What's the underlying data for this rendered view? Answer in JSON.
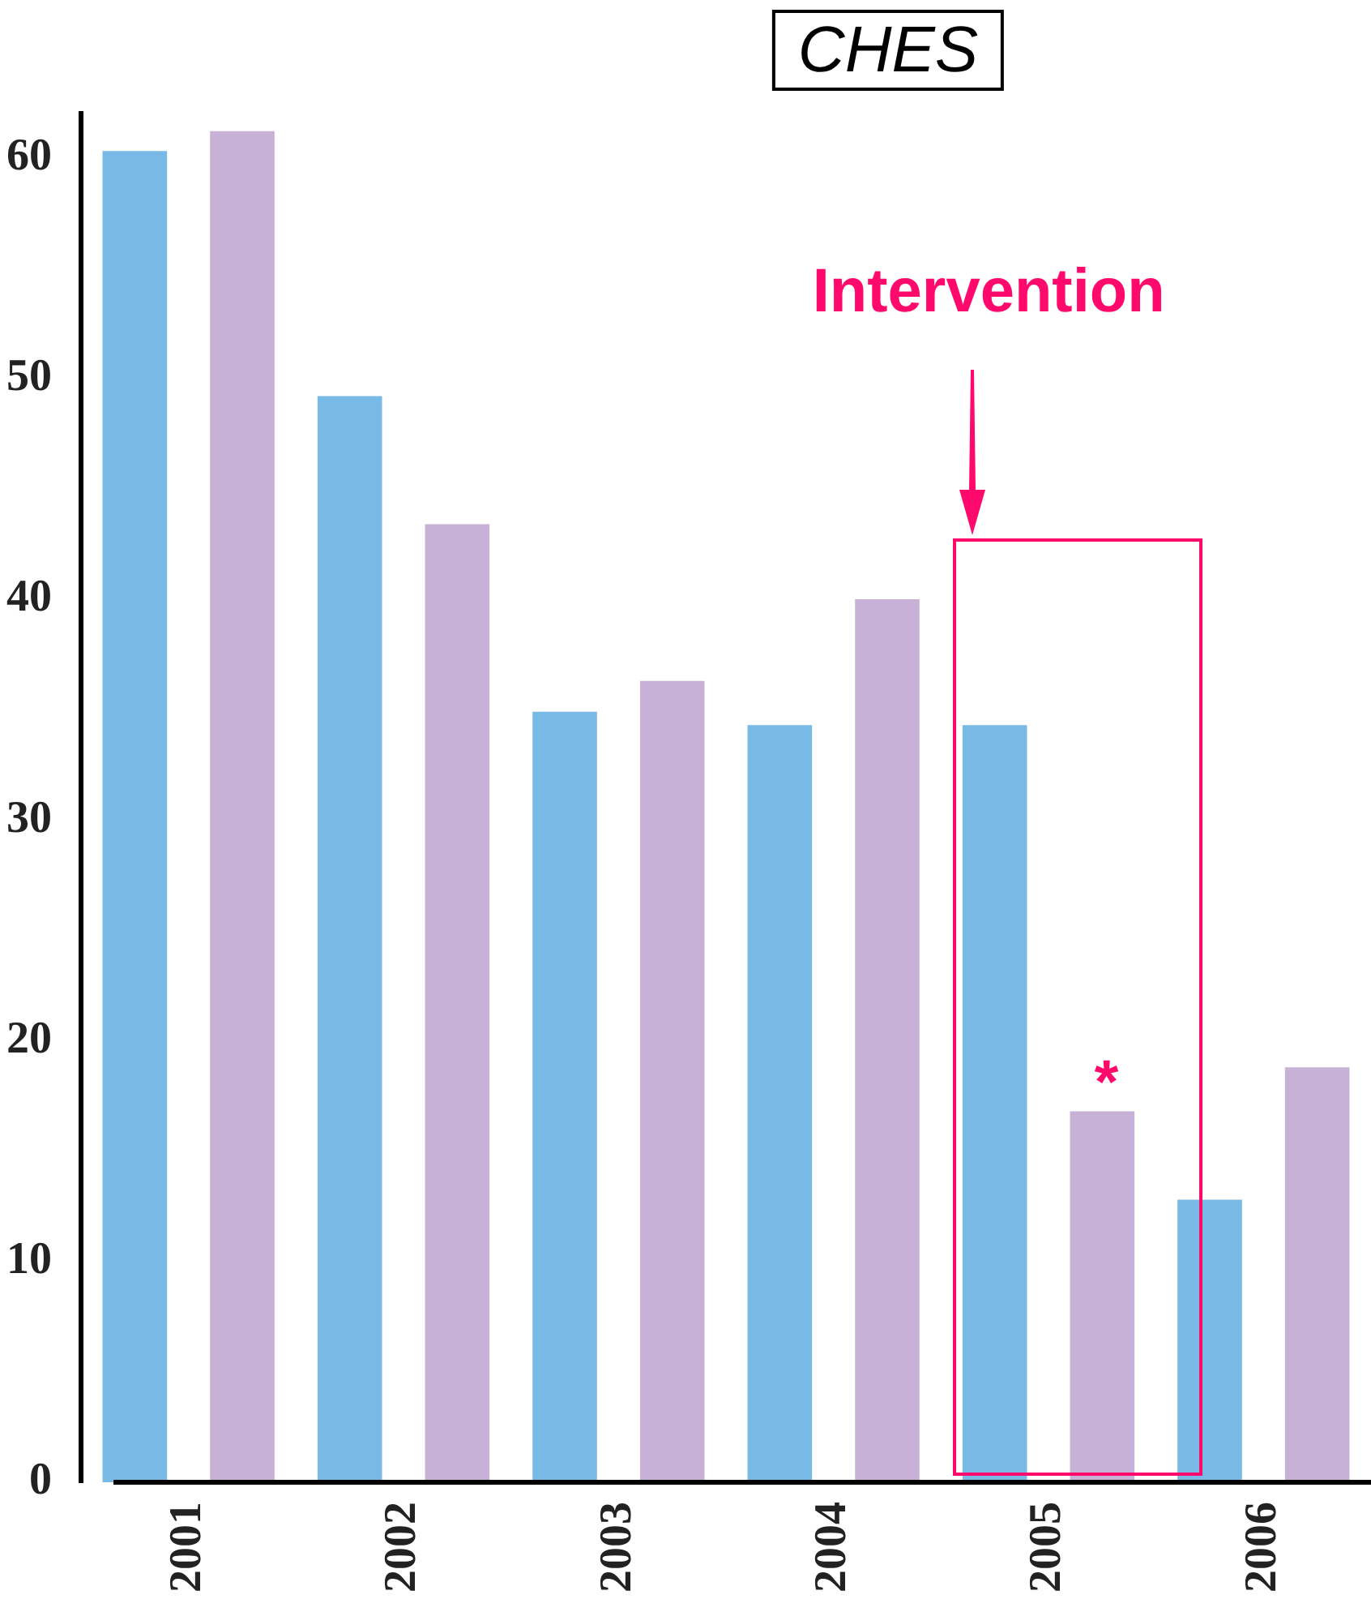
{
  "chart_data": {
    "type": "bar",
    "title": "CHES",
    "categories": [
      "2001",
      "2002",
      "2003",
      "2004",
      "2005",
      "2006"
    ],
    "series": [
      {
        "color": "#78b9e5",
        "values": [
          60.3,
          49.2,
          34.9,
          34.3,
          34.3,
          12.8
        ]
      },
      {
        "color": "#c7b1d6",
        "values": [
          61.2,
          43.4,
          36.3,
          40.0,
          16.8,
          18.8
        ]
      }
    ],
    "ylim": [
      0,
      62
    ],
    "yticks": [
      0,
      10,
      20,
      30,
      40,
      50,
      60
    ],
    "grid": false,
    "legend": false,
    "annotations": [
      "Intervention",
      "*"
    ]
  }
}
